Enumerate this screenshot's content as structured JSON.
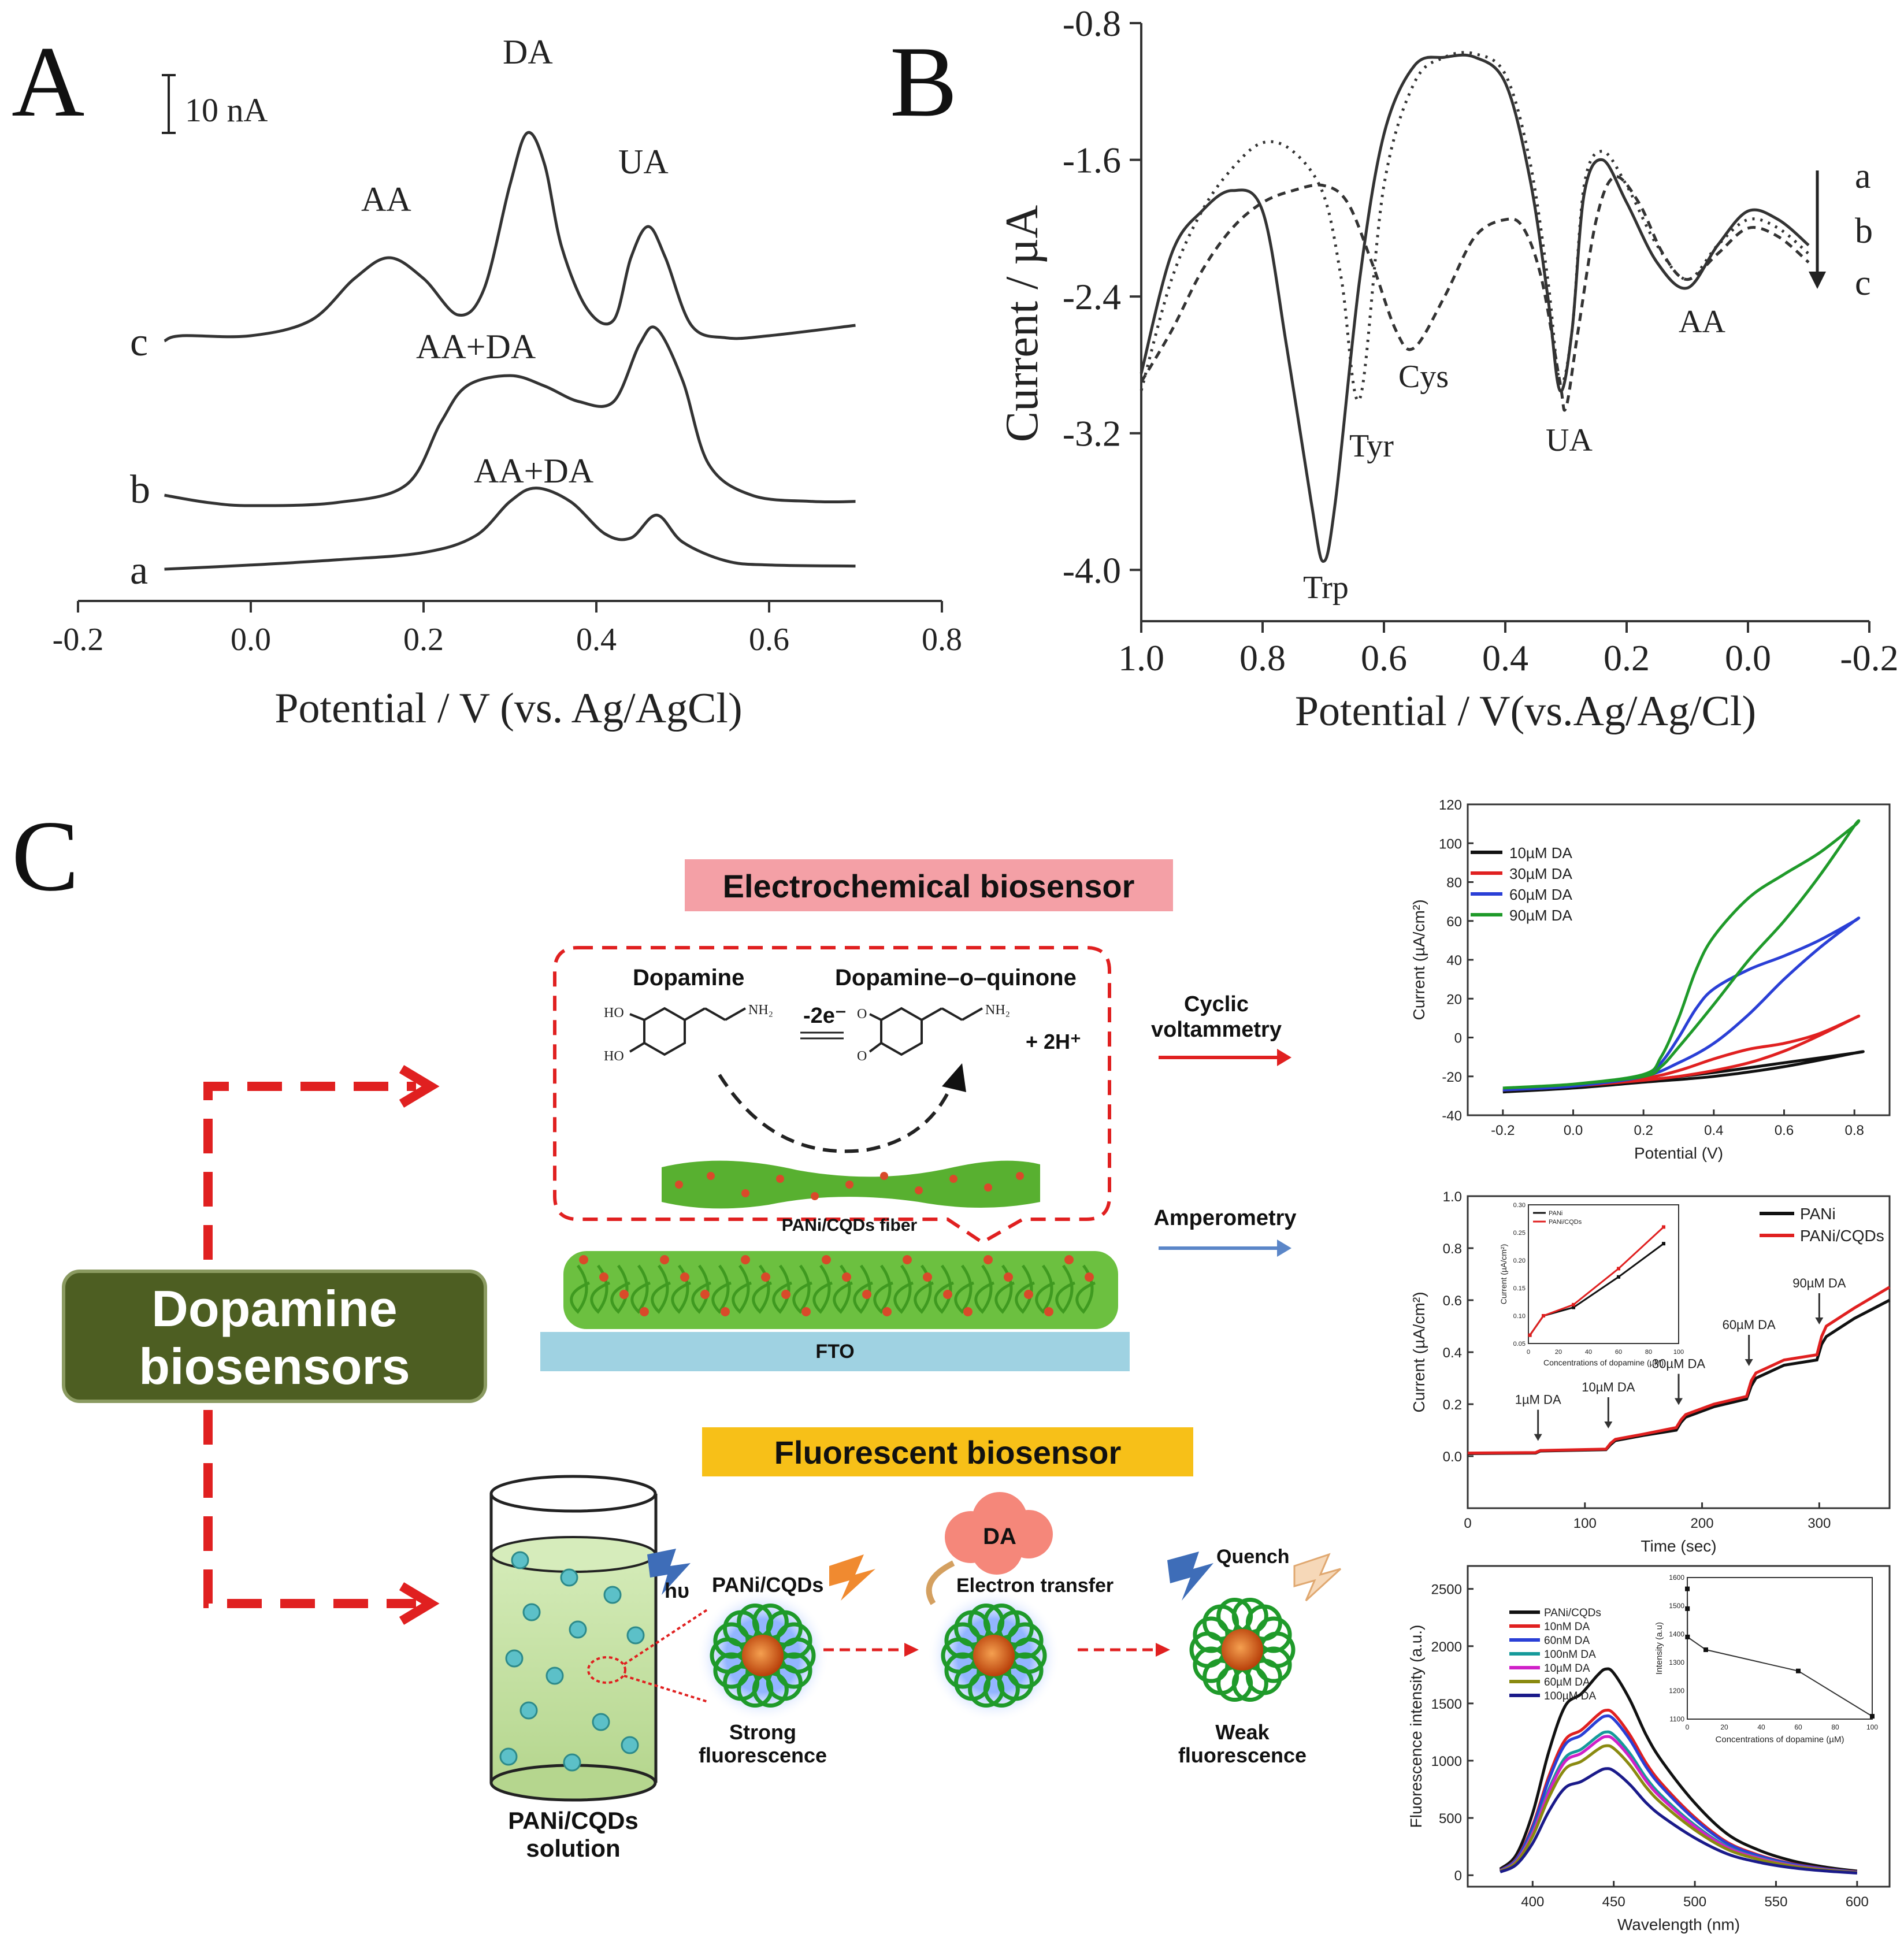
{
  "panel_labels": {
    "a": "A",
    "b": "B",
    "c": "C"
  },
  "colors": {
    "ink": "#222222",
    "red": "#e02020",
    "blue": "#2a3fd6",
    "green": "#1f9a2a",
    "black": "#111111",
    "pink_banner": "#f4a0a6",
    "yellow_banner": "#f7c018",
    "dark_green_box": "#4d5e22",
    "fto": "#9fd2e2",
    "liquid": "#c5e0a6",
    "fiber_green": "#58b030",
    "dot_red": "#d94a2a",
    "blue_arrow": "#5b86c8"
  },
  "chart_data": [
    {
      "id": "A",
      "type": "line",
      "xlabel": "Potential / V (vs. Ag/AgCl)",
      "xlim": [
        -0.2,
        0.8
      ],
      "xticks": [
        "-0.2",
        "0.0",
        "0.2",
        "0.4",
        "0.6",
        "0.8"
      ],
      "scalebar": "10 nA",
      "curve_labels": [
        "c",
        "b",
        "a"
      ],
      "peak_labels": [
        "AA",
        "DA",
        "UA",
        "AA+DA",
        "AA+DA"
      ],
      "series": [
        {
          "name": "a",
          "baseline": 0,
          "x": [
            -0.1,
            0.0,
            0.1,
            0.2,
            0.26,
            0.3,
            0.33,
            0.37,
            0.41,
            0.44,
            0.47,
            0.5,
            0.55,
            0.6,
            0.7
          ],
          "y": [
            0.0,
            0.4,
            0.9,
            1.6,
            3.2,
            6.5,
            7.8,
            6.5,
            3.4,
            3.0,
            5.2,
            2.6,
            0.8,
            0.4,
            0.3
          ]
        },
        {
          "name": "b",
          "baseline": 0,
          "x": [
            -0.1,
            -0.05,
            0.0,
            0.1,
            0.18,
            0.22,
            0.25,
            0.3,
            0.34,
            0.38,
            0.42,
            0.45,
            0.47,
            0.5,
            0.53,
            0.58,
            0.65,
            0.7
          ],
          "y": [
            1.0,
            0.3,
            0.0,
            0.3,
            2.0,
            8.0,
            11.5,
            12.5,
            11.5,
            10.0,
            10.0,
            15.5,
            17.0,
            12.0,
            4.0,
            1.0,
            0.4,
            0.4
          ]
        },
        {
          "name": "c",
          "baseline": 0,
          "x": [
            -0.1,
            -0.08,
            0.0,
            0.07,
            0.12,
            0.16,
            0.2,
            0.24,
            0.27,
            0.3,
            0.32,
            0.34,
            0.36,
            0.39,
            0.42,
            0.44,
            0.46,
            0.48,
            0.51,
            0.55,
            0.6,
            0.7
          ],
          "y": [
            0.0,
            0.5,
            0.5,
            2.0,
            6.0,
            8.0,
            6.0,
            2.5,
            5.0,
            15.0,
            20.0,
            17.0,
            9.0,
            3.0,
            2.0,
            8.0,
            11.0,
            8.0,
            1.5,
            0.3,
            0.5,
            1.5
          ]
        }
      ]
    },
    {
      "id": "B",
      "type": "line",
      "xlabel": "Potential / V(vs.Ag/Ag/Cl)",
      "ylabel": "Current / µA",
      "xlim": [
        1.0,
        -0.2
      ],
      "ylim": [
        -4.3,
        -0.8
      ],
      "xticks": [
        "1.0",
        "0.8",
        "0.6",
        "0.4",
        "0.2",
        "0.0",
        "-0.2"
      ],
      "yticks": [
        "-0.8",
        "-1.6",
        "-2.4",
        "-3.2",
        "-4.0"
      ],
      "curve_labels": [
        "a",
        "b",
        "c"
      ],
      "peak_labels": [
        "Trp",
        "Tyr",
        "Cys",
        "UA",
        "AA"
      ],
      "series": [
        {
          "name": "a",
          "style": "solid",
          "x": [
            1.0,
            0.95,
            0.9,
            0.85,
            0.8,
            0.76,
            0.72,
            0.7,
            0.68,
            0.64,
            0.6,
            0.55,
            0.5,
            0.45,
            0.4,
            0.36,
            0.33,
            0.31,
            0.29,
            0.27,
            0.24,
            0.2,
            0.15,
            0.1,
            0.05,
            0.0,
            -0.05,
            -0.1
          ],
          "y": [
            -2.85,
            -2.15,
            -1.9,
            -1.78,
            -1.9,
            -2.7,
            -3.6,
            -3.95,
            -3.6,
            -2.3,
            -1.45,
            -1.05,
            -1.0,
            -1.0,
            -1.15,
            -1.7,
            -2.4,
            -2.95,
            -2.6,
            -1.8,
            -1.6,
            -1.85,
            -2.2,
            -2.35,
            -2.1,
            -1.9,
            -1.95,
            -2.1
          ]
        },
        {
          "name": "b",
          "style": "dotted",
          "x": [
            1.0,
            0.95,
            0.9,
            0.85,
            0.8,
            0.75,
            0.7,
            0.67,
            0.64,
            0.6,
            0.55,
            0.5,
            0.45,
            0.4,
            0.36,
            0.33,
            0.31,
            0.29,
            0.27,
            0.24,
            0.2,
            0.15,
            0.1,
            0.05,
            0.0,
            -0.05,
            -0.1
          ],
          "y": [
            -2.95,
            -2.3,
            -1.9,
            -1.65,
            -1.5,
            -1.55,
            -1.8,
            -2.3,
            -3.0,
            -1.75,
            -1.15,
            -1.0,
            -0.98,
            -1.1,
            -1.6,
            -2.3,
            -2.9,
            -2.6,
            -1.75,
            -1.55,
            -1.75,
            -2.1,
            -2.3,
            -2.1,
            -1.95,
            -2.0,
            -2.15
          ]
        },
        {
          "name": "c",
          "style": "dashed",
          "x": [
            1.0,
            0.95,
            0.9,
            0.85,
            0.8,
            0.75,
            0.7,
            0.66,
            0.62,
            0.58,
            0.55,
            0.5,
            0.45,
            0.4,
            0.37,
            0.34,
            0.31,
            0.3,
            0.28,
            0.25,
            0.22,
            0.18,
            0.14,
            0.1,
            0.05,
            0.0,
            -0.05,
            -0.1
          ],
          "y": [
            -2.9,
            -2.6,
            -2.25,
            -2.0,
            -1.85,
            -1.78,
            -1.75,
            -1.85,
            -2.2,
            -2.6,
            -2.7,
            -2.4,
            -2.05,
            -1.95,
            -2.0,
            -2.3,
            -2.9,
            -3.05,
            -2.6,
            -1.95,
            -1.7,
            -1.85,
            -2.15,
            -2.3,
            -2.15,
            -2.0,
            -2.05,
            -2.2
          ]
        }
      ]
    },
    {
      "id": "C-cv",
      "type": "line",
      "xlabel": "Potential (V)",
      "ylabel": "Current (µA/cm²)",
      "xlim": [
        -0.3,
        0.9
      ],
      "ylim": [
        -40,
        120
      ],
      "xticks": [
        "-0.2",
        "0.0",
        "0.2",
        "0.4",
        "0.6",
        "0.8"
      ],
      "yticks": [
        "-40",
        "-20",
        "0",
        "20",
        "40",
        "60",
        "80",
        "100",
        "120"
      ],
      "legend": [
        "10µM DA",
        "30µM DA",
        "60µM DA",
        "90µM DA"
      ],
      "series": [
        {
          "name": "10µM DA",
          "color": "#111111",
          "x": [
            -0.2,
            0.0,
            0.2,
            0.4,
            0.6,
            0.8,
            0.8,
            0.6,
            0.4,
            0.2,
            0.0,
            -0.2
          ],
          "y": [
            -28,
            -25,
            -22,
            -18,
            -13,
            -8,
            -8,
            -15,
            -20,
            -23,
            -26,
            -28
          ]
        },
        {
          "name": "30µM DA",
          "color": "#e02020",
          "x": [
            -0.2,
            0.0,
            0.2,
            0.3,
            0.4,
            0.5,
            0.6,
            0.7,
            0.8,
            0.8,
            0.7,
            0.6,
            0.5,
            0.4,
            0.3,
            0.2,
            0.0,
            -0.2
          ],
          "y": [
            -27,
            -25,
            -21,
            -17,
            -11,
            -6,
            -3,
            2,
            10,
            10,
            1,
            -7,
            -13,
            -17,
            -20,
            -22,
            -25,
            -27
          ]
        },
        {
          "name": "60µM DA",
          "color": "#2a3fd6",
          "x": [
            -0.2,
            0.0,
            0.2,
            0.25,
            0.3,
            0.35,
            0.4,
            0.5,
            0.6,
            0.7,
            0.8,
            0.8,
            0.7,
            0.6,
            0.5,
            0.4,
            0.3,
            0.2,
            0.0,
            -0.2
          ],
          "y": [
            -27,
            -25,
            -20,
            -13,
            0,
            15,
            25,
            35,
            42,
            50,
            60,
            60,
            46,
            30,
            12,
            -3,
            -13,
            -20,
            -25,
            -27
          ]
        },
        {
          "name": "90µM DA",
          "color": "#1f9a2a",
          "x": [
            -0.2,
            0.0,
            0.2,
            0.25,
            0.3,
            0.35,
            0.4,
            0.5,
            0.6,
            0.7,
            0.8,
            0.8,
            0.7,
            0.6,
            0.5,
            0.4,
            0.3,
            0.25,
            0.2,
            0.0,
            -0.2
          ],
          "y": [
            -26,
            -24,
            -19,
            -10,
            10,
            35,
            52,
            72,
            84,
            95,
            109,
            109,
            83,
            60,
            40,
            17,
            -5,
            -15,
            -20,
            -24,
            -26
          ]
        }
      ]
    },
    {
      "id": "C-amp",
      "type": "line",
      "xlabel": "Time (sec)",
      "ylabel": "Current (µA/cm²)",
      "xlim": [
        0,
        360
      ],
      "ylim": [
        -0.2,
        1.0
      ],
      "xticks": [
        "0",
        "100",
        "200",
        "300"
      ],
      "yticks": [
        "0.0",
        "0.2",
        "0.4",
        "0.6",
        "0.8",
        "1.0"
      ],
      "legend": [
        "PANi",
        "PANi/CQDs"
      ],
      "annotations": [
        "1µM DA",
        "10µM DA",
        "30µM DA",
        "60µM DA",
        "90µM DA"
      ],
      "annotation_x": [
        60,
        120,
        180,
        240,
        300
      ],
      "series": [
        {
          "name": "PANi",
          "color": "#111111",
          "x": [
            0,
            58,
            62,
            118,
            122,
            126,
            150,
            178,
            182,
            186,
            210,
            238,
            242,
            246,
            270,
            298,
            302,
            306,
            330,
            360
          ],
          "y": [
            0.01,
            0.012,
            0.02,
            0.025,
            0.045,
            0.06,
            0.08,
            0.1,
            0.13,
            0.15,
            0.19,
            0.22,
            0.27,
            0.3,
            0.35,
            0.37,
            0.43,
            0.46,
            0.53,
            0.6
          ]
        },
        {
          "name": "PANi/CQDs",
          "color": "#e02020",
          "x": [
            0,
            58,
            62,
            118,
            122,
            126,
            150,
            178,
            182,
            186,
            210,
            238,
            242,
            246,
            270,
            298,
            302,
            306,
            330,
            360
          ],
          "y": [
            0.012,
            0.014,
            0.022,
            0.027,
            0.05,
            0.065,
            0.085,
            0.11,
            0.14,
            0.16,
            0.2,
            0.23,
            0.29,
            0.32,
            0.37,
            0.39,
            0.46,
            0.5,
            0.57,
            0.65
          ]
        }
      ],
      "inset": {
        "xlabel": "Concentrations of dopamine (µM)",
        "ylabel": "Current (µA/cm²)",
        "xlim": [
          0,
          100
        ],
        "ylim": [
          0.05,
          0.3
        ],
        "xticks": [
          "0",
          "20",
          "40",
          "60",
          "80",
          "100"
        ],
        "yticks": [
          "0.05",
          "0.10",
          "0.15",
          "0.20",
          "0.25",
          "0.30"
        ],
        "legend": [
          "PANi",
          "PANi/CQDs"
        ],
        "series": [
          {
            "name": "PANi",
            "color": "#111111",
            "x": [
              1,
              10,
              30,
              60,
              90
            ],
            "y": [
              0.065,
              0.1,
              0.115,
              0.17,
              0.23
            ]
          },
          {
            "name": "PANi/CQDs",
            "color": "#e02020",
            "x": [
              1,
              10,
              30,
              60,
              90
            ],
            "y": [
              0.065,
              0.1,
              0.12,
              0.185,
              0.26
            ]
          }
        ]
      }
    },
    {
      "id": "C-fl",
      "type": "line",
      "xlabel": "Wavelength (nm)",
      "ylabel": "Fluorescence intensity (a.u.)",
      "xlim": [
        360,
        620
      ],
      "ylim": [
        -100,
        2700
      ],
      "xticks": [
        "400",
        "450",
        "500",
        "550",
        "600"
      ],
      "yticks": [
        "0",
        "500",
        "1000",
        "1500",
        "2000",
        "2500"
      ],
      "legend": [
        "PANi/CQDs",
        "10nM DA",
        "60nM DA",
        "100nM DA",
        "10µM DA",
        "60µM DA",
        "100µM DA"
      ],
      "legend_colors": [
        "#111111",
        "#e02020",
        "#2a3fd6",
        "#159a9a",
        "#d020c8",
        "#8a8a10",
        "#1a1a8a"
      ],
      "wavelengths": [
        380,
        390,
        400,
        410,
        420,
        430,
        440,
        445,
        450,
        460,
        470,
        480,
        500,
        520,
        540,
        560,
        580,
        600
      ],
      "peak_values": [
        1800,
        1440,
        1390,
        1250,
        1210,
        1130,
        930
      ],
      "shape": [
        0.03,
        0.1,
        0.3,
        0.6,
        0.82,
        0.88,
        0.97,
        1.0,
        0.98,
        0.85,
        0.68,
        0.55,
        0.35,
        0.2,
        0.12,
        0.07,
        0.04,
        0.02
      ],
      "inset": {
        "xlabel": "Concentrations of dopamine (µM)",
        "ylabel": "Intensity (a.u)",
        "xlim": [
          0,
          100
        ],
        "ylim": [
          1100,
          1600
        ],
        "xticks": [
          "0",
          "20",
          "40",
          "60",
          "80",
          "100"
        ],
        "yticks": [
          "1100",
          "1200",
          "1300",
          "1400",
          "1500",
          "1600"
        ],
        "x": [
          0.01,
          0.06,
          0.1,
          10,
          60,
          100
        ],
        "y": [
          1560,
          1490,
          1390,
          1345,
          1270,
          1110
        ]
      }
    }
  ],
  "schematic": {
    "title_box": "Dopamine\nbiosensors",
    "electrochemical_banner": "Electrochemical  biosensor",
    "fluorescent_banner": "Fluorescent biosensor",
    "dopamine_label": "Dopamine",
    "quinone_label": "Dopamine–o–quinone",
    "electrons": "-2e⁻",
    "protons": "+ 2H⁺",
    "ho1": "HO",
    "ho2": "HO",
    "nh2_1": "NH₂",
    "nh2_2": "NH₂",
    "o1": "O",
    "o2": "O",
    "fiber_label": "PANi/CQDs fiber",
    "fto_label": "FTO",
    "cv_label": "Cyclic\nvoltammetry",
    "amperometry_label": "Amperometry",
    "solution_label": "PANi/CQDs\nsolution",
    "hv_label": "hυ",
    "pani_cqds_label": "PANi/CQDs",
    "strong_label": "Strong\nfluorescence",
    "da_cloud": "DA",
    "electron_transfer": "Electron transfer",
    "quench_label": "Quench",
    "weak_label": "Weak\nfluorescence"
  }
}
